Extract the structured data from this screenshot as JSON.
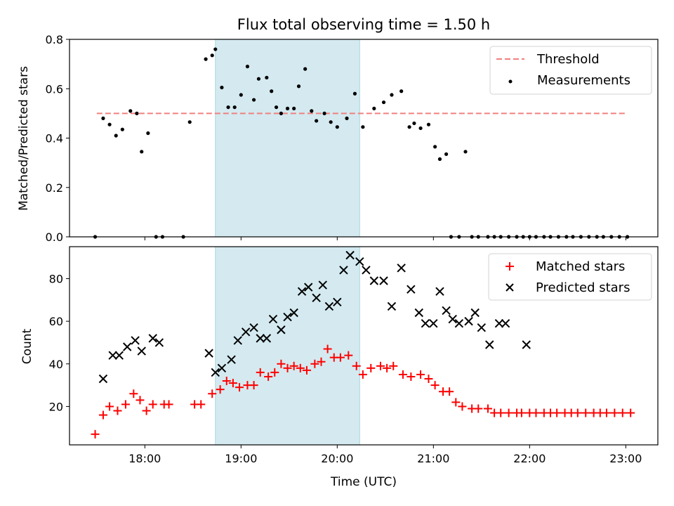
{
  "chart_data": [
    {
      "type": "scatter",
      "title": "Flux total observing time = 1.50 h",
      "xlabel": "",
      "ylabel": "Matched/Predicted stars",
      "xlim": [
        "17:13",
        "23:20"
      ],
      "ylim": [
        0,
        0.8
      ],
      "yticks": [
        0.0,
        0.2,
        0.4,
        0.6,
        0.8
      ],
      "ytick_labels": [
        "0.0",
        "0.2",
        "0.4",
        "0.6",
        "0.8"
      ],
      "xticks": [
        "18:00",
        "19:00",
        "20:00",
        "21:00",
        "22:00",
        "23:00"
      ],
      "x_tick_labels_shown": false,
      "highlight_span": {
        "start": "18:44",
        "end": "20:14",
        "color": "#d4eaf0"
      },
      "legend": {
        "placement": "top-right",
        "entries": [
          "Threshold",
          "Measurements"
        ]
      },
      "series": [
        {
          "name": "Threshold",
          "style": "dashed-line",
          "color": "#f08080",
          "x": [
            "17:30",
            "23:01"
          ],
          "y": [
            0.5,
            0.5
          ]
        },
        {
          "name": "Measurements",
          "style": "dot",
          "color": "#000000",
          "x": [
            "17:29",
            "17:34",
            "17:38",
            "17:42",
            "17:46",
            "17:51",
            "17:55",
            "17:58",
            "18:02",
            "18:07",
            "18:11",
            "18:24",
            "18:28",
            "18:38",
            "18:42",
            "18:44",
            "18:48",
            "18:52",
            "18:56",
            "19:00",
            "19:04",
            "19:08",
            "19:11",
            "19:16",
            "19:19",
            "19:22",
            "19:25",
            "19:29",
            "19:33",
            "19:36",
            "19:40",
            "19:44",
            "19:47",
            "19:52",
            "19:56",
            "20:00",
            "20:06",
            "20:11",
            "20:16",
            "20:23",
            "20:29",
            "20:34",
            "20:40",
            "20:45",
            "20:48",
            "20:52",
            "20:57",
            "21:01",
            "21:04",
            "21:08",
            "21:11",
            "21:16",
            "21:20",
            "21:24",
            "21:28",
            "21:34",
            "21:38",
            "21:42",
            "21:47",
            "21:52",
            "21:56",
            "22:00",
            "22:04",
            "22:09",
            "22:13",
            "22:18",
            "22:23",
            "22:27",
            "22:32",
            "22:37",
            "22:42",
            "22:46",
            "22:51",
            "22:56",
            "23:01"
          ],
          "y": [
            0.0,
            0.48,
            0.455,
            0.41,
            0.435,
            0.51,
            0.5,
            0.345,
            0.42,
            0.0,
            0.0,
            0.0,
            0.465,
            0.72,
            0.735,
            0.76,
            0.605,
            0.525,
            0.525,
            0.575,
            0.69,
            0.555,
            0.64,
            0.645,
            0.59,
            0.525,
            0.5,
            0.52,
            0.52,
            0.61,
            0.68,
            0.51,
            0.47,
            0.5,
            0.465,
            0.445,
            0.48,
            0.58,
            0.445,
            0.52,
            0.545,
            0.575,
            0.59,
            0.445,
            0.46,
            0.44,
            0.455,
            0.365,
            0.315,
            0.335,
            0.0,
            0.0,
            0.345,
            0.0,
            0.0,
            0.0,
            0.0,
            0.0,
            0.0,
            0.0,
            0.0,
            0.0,
            0.0,
            0.0,
            0.0,
            0.0,
            0.0,
            0.0,
            0.0,
            0.0,
            0.0,
            0.0,
            0.0,
            0.0,
            0.0
          ]
        }
      ]
    },
    {
      "type": "scatter",
      "title": "",
      "xlabel": "Time (UTC)",
      "ylabel": "Count",
      "xlim": [
        "17:13",
        "23:20"
      ],
      "ylim": [
        2,
        95
      ],
      "yticks": [
        20,
        40,
        60,
        80
      ],
      "ytick_labels": [
        "20",
        "40",
        "60",
        "80"
      ],
      "xticks": [
        "18:00",
        "19:00",
        "20:00",
        "21:00",
        "22:00",
        "23:00"
      ],
      "xtick_labels": [
        "18:00",
        "19:00",
        "20:00",
        "21:00",
        "22:00",
        "23:00"
      ],
      "highlight_span": {
        "start": "18:44",
        "end": "20:14",
        "color": "#d4eaf0"
      },
      "legend": {
        "placement": "top-right",
        "entries": [
          "Matched stars",
          "Predicted stars"
        ]
      },
      "series": [
        {
          "name": "Matched stars",
          "style": "plus",
          "color": "#ff0000",
          "x": [
            "17:29",
            "17:34",
            "17:38",
            "17:43",
            "17:48",
            "17:53",
            "17:57",
            "18:01",
            "18:05",
            "18:12",
            "18:15",
            "18:31",
            "18:35",
            "18:42",
            "18:47",
            "18:51",
            "18:55",
            "18:59",
            "19:04",
            "19:08",
            "19:12",
            "19:17",
            "19:21",
            "19:25",
            "19:29",
            "19:33",
            "19:37",
            "19:41",
            "19:46",
            "19:50",
            "19:54",
            "19:58",
            "20:02",
            "20:07",
            "20:12",
            "20:16",
            "20:21",
            "20:27",
            "20:31",
            "20:35",
            "20:41",
            "20:46",
            "20:52",
            "20:57",
            "21:01",
            "21:06",
            "21:10",
            "21:14",
            "21:18",
            "21:24",
            "21:28",
            "21:34",
            "21:38",
            "21:42",
            "21:47",
            "21:52",
            "21:55",
            "22:00",
            "22:04",
            "22:09",
            "22:13",
            "22:17",
            "22:22",
            "22:26",
            "22:30",
            "22:35",
            "22:40",
            "22:44",
            "22:48",
            "22:53",
            "22:58",
            "23:03"
          ],
          "y": [
            7,
            16,
            20,
            18,
            21,
            26,
            23,
            18,
            21,
            21,
            21,
            21,
            21,
            26,
            28,
            32,
            31,
            29,
            30,
            30,
            36,
            34,
            36,
            40,
            38,
            39,
            38,
            37,
            40,
            41,
            47,
            43,
            43,
            44,
            39,
            35,
            38,
            39,
            38,
            39,
            35,
            34,
            35,
            33,
            30,
            27,
            27,
            22,
            20,
            19,
            19,
            19,
            17,
            17,
            17,
            17,
            17,
            17,
            17,
            17,
            17,
            17,
            17,
            17,
            17,
            17,
            17,
            17,
            17,
            17,
            17,
            17
          ]
        },
        {
          "name": "Predicted stars",
          "style": "x",
          "color": "#000000",
          "x": [
            "17:34",
            "17:40",
            "17:44",
            "17:49",
            "17:54",
            "17:58",
            "18:05",
            "18:09",
            "18:40",
            "18:44",
            "18:48",
            "18:54",
            "18:58",
            "19:03",
            "19:08",
            "19:12",
            "19:16",
            "19:20",
            "19:25",
            "19:29",
            "19:33",
            "19:38",
            "19:42",
            "19:47",
            "19:51",
            "19:55",
            "20:00",
            "20:04",
            "20:08",
            "20:14",
            "20:18",
            "20:23",
            "20:29",
            "20:34",
            "20:40",
            "20:46",
            "20:51",
            "20:55",
            "21:00",
            "21:04",
            "21:08",
            "21:12",
            "21:16",
            "21:22",
            "21:26",
            "21:30",
            "21:35",
            "21:41",
            "21:45",
            "21:58"
          ],
          "y": [
            33,
            44,
            44,
            48,
            51,
            46,
            52,
            50,
            45,
            36,
            38,
            42,
            51,
            55,
            57,
            52,
            52,
            61,
            56,
            62,
            64,
            74,
            76,
            71,
            77,
            67,
            69,
            84,
            91,
            88,
            84,
            79,
            79,
            67,
            85,
            75,
            64,
            59,
            59,
            74,
            65,
            61,
            59,
            60,
            64,
            57,
            49,
            59,
            59,
            49
          ]
        }
      ]
    }
  ]
}
